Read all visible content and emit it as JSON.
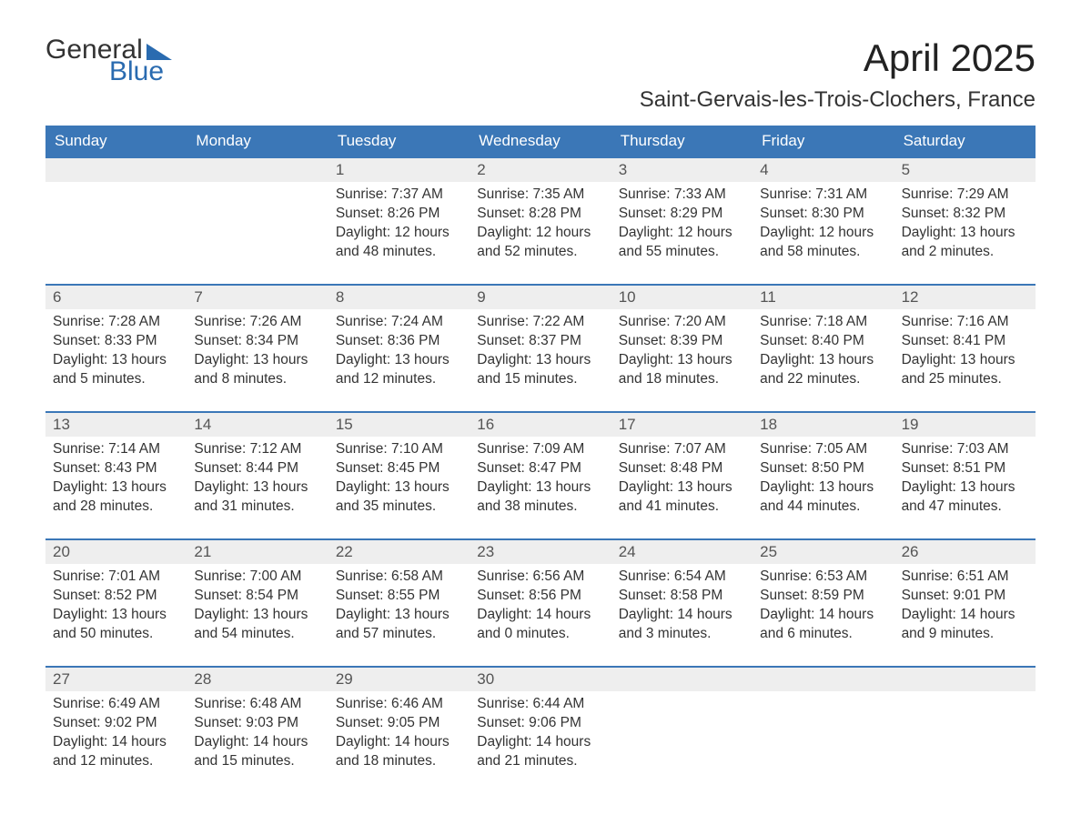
{
  "logo": {
    "word1": "General",
    "word2": "Blue"
  },
  "title": "April 2025",
  "location": "Saint-Gervais-les-Trois-Clochers, France",
  "colors": {
    "header_bg": "#3b77b7",
    "header_text": "#ffffff",
    "daynum_bg": "#eeeeee",
    "body_text": "#333333",
    "logo_accent": "#2a6bb0"
  },
  "weekdays": [
    "Sunday",
    "Monday",
    "Tuesday",
    "Wednesday",
    "Thursday",
    "Friday",
    "Saturday"
  ],
  "weeks": [
    {
      "days": [
        {
          "num": "",
          "lines": []
        },
        {
          "num": "",
          "lines": []
        },
        {
          "num": "1",
          "lines": [
            "Sunrise: 7:37 AM",
            "Sunset: 8:26 PM",
            "Daylight: 12 hours",
            "and 48 minutes."
          ]
        },
        {
          "num": "2",
          "lines": [
            "Sunrise: 7:35 AM",
            "Sunset: 8:28 PM",
            "Daylight: 12 hours",
            "and 52 minutes."
          ]
        },
        {
          "num": "3",
          "lines": [
            "Sunrise: 7:33 AM",
            "Sunset: 8:29 PM",
            "Daylight: 12 hours",
            "and 55 minutes."
          ]
        },
        {
          "num": "4",
          "lines": [
            "Sunrise: 7:31 AM",
            "Sunset: 8:30 PM",
            "Daylight: 12 hours",
            "and 58 minutes."
          ]
        },
        {
          "num": "5",
          "lines": [
            "Sunrise: 7:29 AM",
            "Sunset: 8:32 PM",
            "Daylight: 13 hours",
            "and 2 minutes."
          ]
        }
      ]
    },
    {
      "days": [
        {
          "num": "6",
          "lines": [
            "Sunrise: 7:28 AM",
            "Sunset: 8:33 PM",
            "Daylight: 13 hours",
            "and 5 minutes."
          ]
        },
        {
          "num": "7",
          "lines": [
            "Sunrise: 7:26 AM",
            "Sunset: 8:34 PM",
            "Daylight: 13 hours",
            "and 8 minutes."
          ]
        },
        {
          "num": "8",
          "lines": [
            "Sunrise: 7:24 AM",
            "Sunset: 8:36 PM",
            "Daylight: 13 hours",
            "and 12 minutes."
          ]
        },
        {
          "num": "9",
          "lines": [
            "Sunrise: 7:22 AM",
            "Sunset: 8:37 PM",
            "Daylight: 13 hours",
            "and 15 minutes."
          ]
        },
        {
          "num": "10",
          "lines": [
            "Sunrise: 7:20 AM",
            "Sunset: 8:39 PM",
            "Daylight: 13 hours",
            "and 18 minutes."
          ]
        },
        {
          "num": "11",
          "lines": [
            "Sunrise: 7:18 AM",
            "Sunset: 8:40 PM",
            "Daylight: 13 hours",
            "and 22 minutes."
          ]
        },
        {
          "num": "12",
          "lines": [
            "Sunrise: 7:16 AM",
            "Sunset: 8:41 PM",
            "Daylight: 13 hours",
            "and 25 minutes."
          ]
        }
      ]
    },
    {
      "days": [
        {
          "num": "13",
          "lines": [
            "Sunrise: 7:14 AM",
            "Sunset: 8:43 PM",
            "Daylight: 13 hours",
            "and 28 minutes."
          ]
        },
        {
          "num": "14",
          "lines": [
            "Sunrise: 7:12 AM",
            "Sunset: 8:44 PM",
            "Daylight: 13 hours",
            "and 31 minutes."
          ]
        },
        {
          "num": "15",
          "lines": [
            "Sunrise: 7:10 AM",
            "Sunset: 8:45 PM",
            "Daylight: 13 hours",
            "and 35 minutes."
          ]
        },
        {
          "num": "16",
          "lines": [
            "Sunrise: 7:09 AM",
            "Sunset: 8:47 PM",
            "Daylight: 13 hours",
            "and 38 minutes."
          ]
        },
        {
          "num": "17",
          "lines": [
            "Sunrise: 7:07 AM",
            "Sunset: 8:48 PM",
            "Daylight: 13 hours",
            "and 41 minutes."
          ]
        },
        {
          "num": "18",
          "lines": [
            "Sunrise: 7:05 AM",
            "Sunset: 8:50 PM",
            "Daylight: 13 hours",
            "and 44 minutes."
          ]
        },
        {
          "num": "19",
          "lines": [
            "Sunrise: 7:03 AM",
            "Sunset: 8:51 PM",
            "Daylight: 13 hours",
            "and 47 minutes."
          ]
        }
      ]
    },
    {
      "days": [
        {
          "num": "20",
          "lines": [
            "Sunrise: 7:01 AM",
            "Sunset: 8:52 PM",
            "Daylight: 13 hours",
            "and 50 minutes."
          ]
        },
        {
          "num": "21",
          "lines": [
            "Sunrise: 7:00 AM",
            "Sunset: 8:54 PM",
            "Daylight: 13 hours",
            "and 54 minutes."
          ]
        },
        {
          "num": "22",
          "lines": [
            "Sunrise: 6:58 AM",
            "Sunset: 8:55 PM",
            "Daylight: 13 hours",
            "and 57 minutes."
          ]
        },
        {
          "num": "23",
          "lines": [
            "Sunrise: 6:56 AM",
            "Sunset: 8:56 PM",
            "Daylight: 14 hours",
            "and 0 minutes."
          ]
        },
        {
          "num": "24",
          "lines": [
            "Sunrise: 6:54 AM",
            "Sunset: 8:58 PM",
            "Daylight: 14 hours",
            "and 3 minutes."
          ]
        },
        {
          "num": "25",
          "lines": [
            "Sunrise: 6:53 AM",
            "Sunset: 8:59 PM",
            "Daylight: 14 hours",
            "and 6 minutes."
          ]
        },
        {
          "num": "26",
          "lines": [
            "Sunrise: 6:51 AM",
            "Sunset: 9:01 PM",
            "Daylight: 14 hours",
            "and 9 minutes."
          ]
        }
      ]
    },
    {
      "days": [
        {
          "num": "27",
          "lines": [
            "Sunrise: 6:49 AM",
            "Sunset: 9:02 PM",
            "Daylight: 14 hours",
            "and 12 minutes."
          ]
        },
        {
          "num": "28",
          "lines": [
            "Sunrise: 6:48 AM",
            "Sunset: 9:03 PM",
            "Daylight: 14 hours",
            "and 15 minutes."
          ]
        },
        {
          "num": "29",
          "lines": [
            "Sunrise: 6:46 AM",
            "Sunset: 9:05 PM",
            "Daylight: 14 hours",
            "and 18 minutes."
          ]
        },
        {
          "num": "30",
          "lines": [
            "Sunrise: 6:44 AM",
            "Sunset: 9:06 PM",
            "Daylight: 14 hours",
            "and 21 minutes."
          ]
        },
        {
          "num": "",
          "lines": []
        },
        {
          "num": "",
          "lines": []
        },
        {
          "num": "",
          "lines": []
        }
      ]
    }
  ]
}
